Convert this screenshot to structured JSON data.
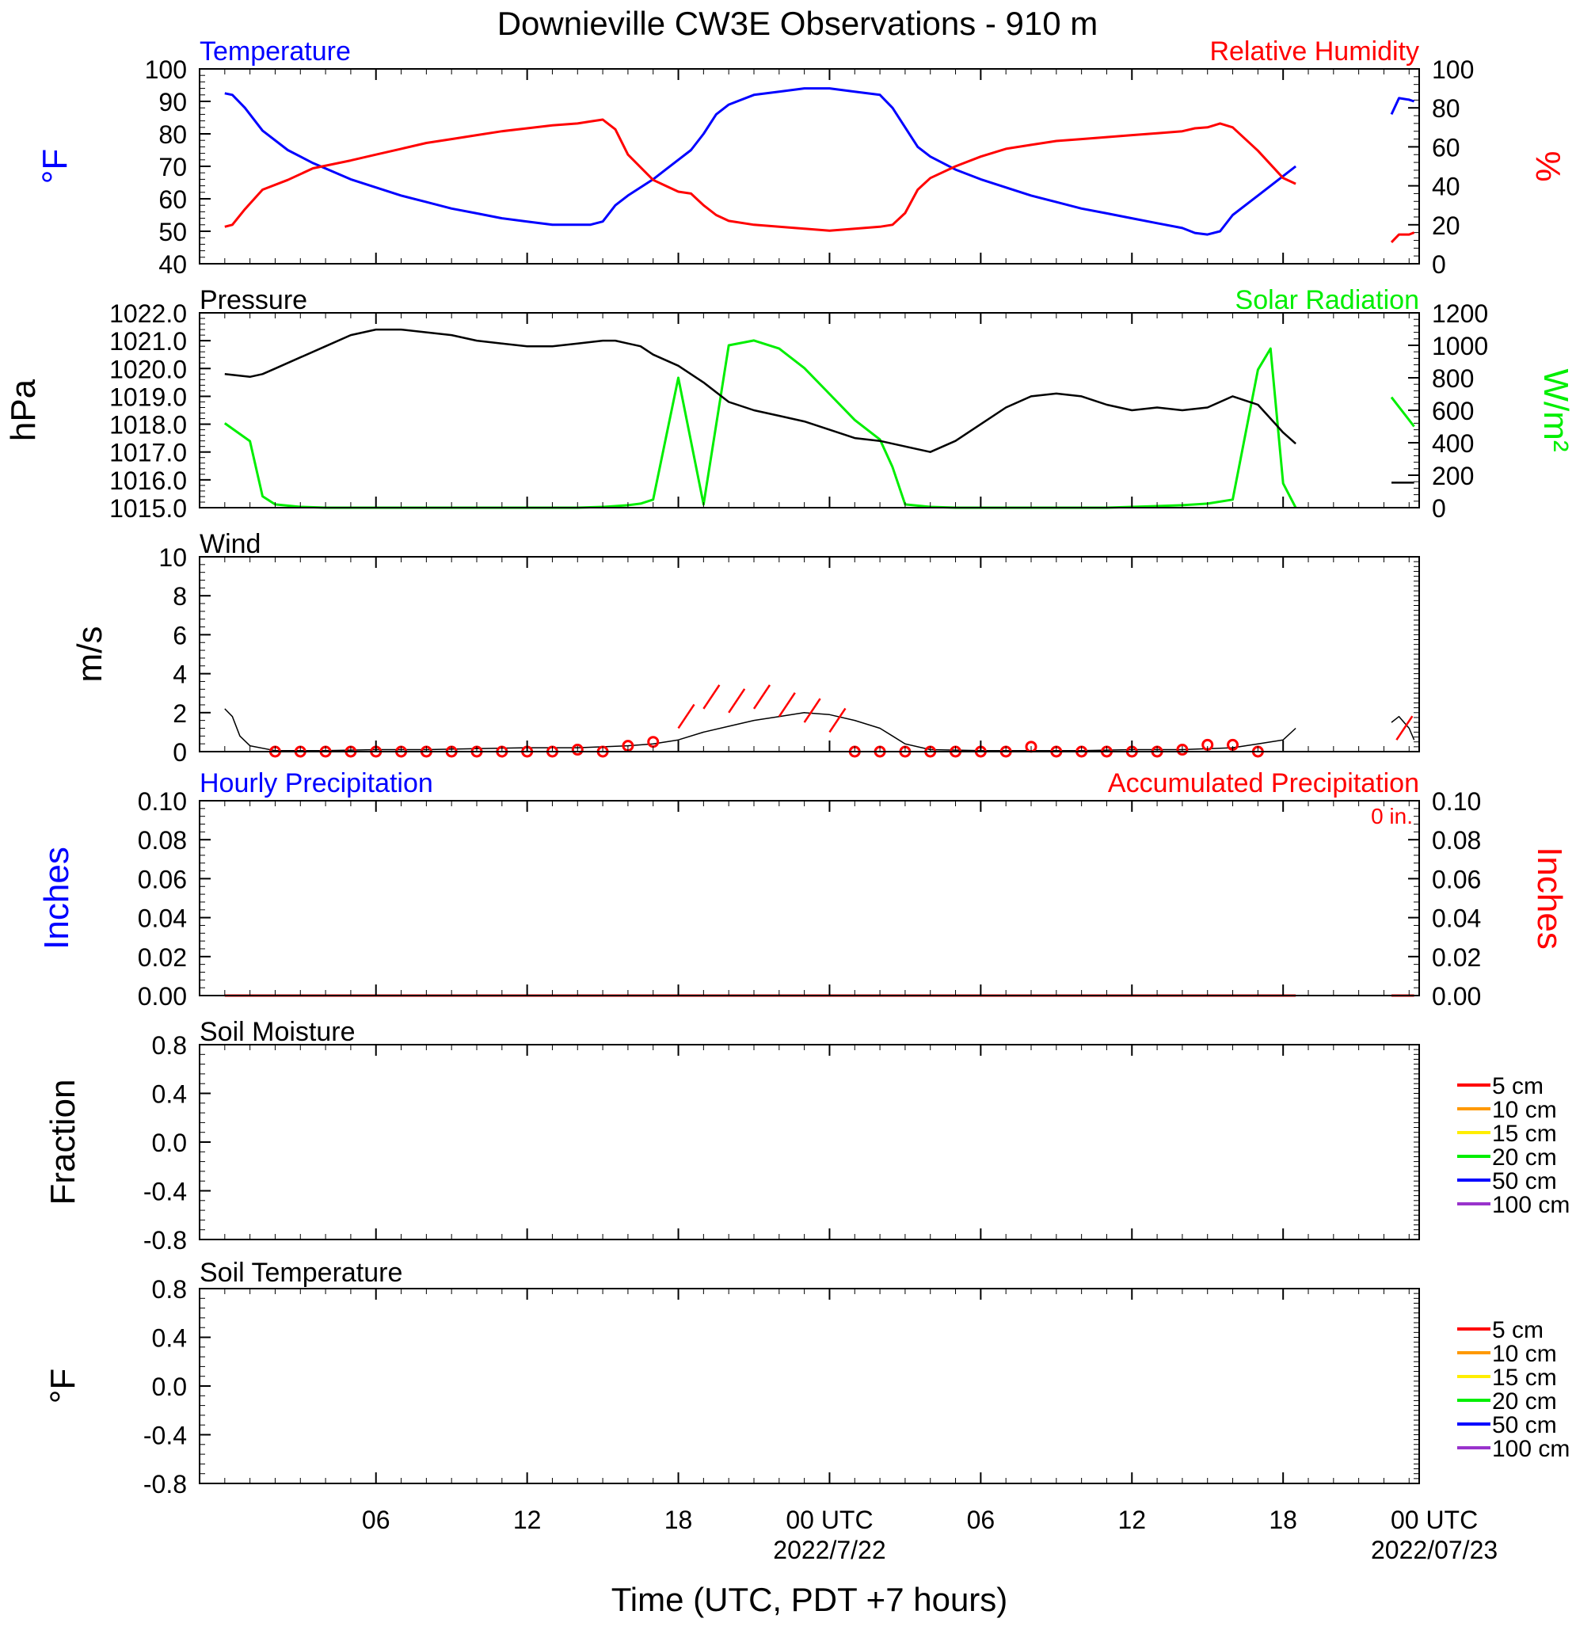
{
  "title": "Downieville CW3E Observations - 910 m",
  "x_axis": {
    "title": "Time (UTC, PDT +7 hours)",
    "ticks": [
      {
        "h": 6,
        "label": "06"
      },
      {
        "h": 12,
        "label": "12"
      },
      {
        "h": 18,
        "label": "18"
      },
      {
        "h": 24,
        "label": "00 UTC",
        "date": "2022/7/22"
      },
      {
        "h": 30,
        "label": "06"
      },
      {
        "h": 36,
        "label": "12"
      },
      {
        "h": 42,
        "label": "18"
      },
      {
        "h": 48,
        "label": "00 UTC",
        "date": "2022/07/23"
      }
    ]
  },
  "colors": {
    "temperature": "#0000ff",
    "humidity": "#ff0000",
    "pressure": "#000000",
    "solar": "#00ee00",
    "wind": "#000000",
    "barb": "#ff0000"
  },
  "panels": {
    "temperature": {
      "title": "Temperature",
      "right_title": "Relative Humidity",
      "left_unit": "°F",
      "right_unit": "%",
      "left_ticks": [
        "40",
        "50",
        "60",
        "70",
        "80",
        "90",
        "100"
      ],
      "right_ticks": [
        "0",
        "20",
        "40",
        "60",
        "80",
        "100"
      ]
    },
    "pressure": {
      "title": "Pressure",
      "right_title": "Solar Radiation",
      "left_unit": "hPa",
      "right_unit": "W/m²",
      "left_ticks": [
        "1015.0",
        "1016.0",
        "1017.0",
        "1018.0",
        "1019.0",
        "1020.0",
        "1021.0",
        "1022.0"
      ],
      "right_ticks": [
        "0",
        "200",
        "400",
        "600",
        "800",
        "1000",
        "1200"
      ]
    },
    "wind": {
      "title": "Wind",
      "left_unit": "m/s",
      "left_ticks": [
        "0",
        "2",
        "4",
        "6",
        "8",
        "10"
      ]
    },
    "precip": {
      "title": "Hourly Precipitation",
      "right_title": "Accumulated Precipitation",
      "total": "0 in.",
      "left_unit": "Inches",
      "right_unit": "Inches",
      "left_ticks": [
        "0.00",
        "0.02",
        "0.04",
        "0.06",
        "0.08",
        "0.10"
      ],
      "right_ticks": [
        "0.00",
        "0.02",
        "0.04",
        "0.06",
        "0.08",
        "0.10"
      ]
    },
    "soil_moisture": {
      "title": "Soil Moisture",
      "left_unit": "Fraction",
      "left_ticks": [
        "-0.8",
        "-0.4",
        "0.0",
        "0.4",
        "0.8"
      ]
    },
    "soil_temperature": {
      "title": "Soil Temperature",
      "left_unit": "°F",
      "left_ticks": [
        "-0.8",
        "-0.4",
        "0.0",
        "0.4",
        "0.8"
      ]
    }
  },
  "soil_legend": [
    {
      "label": "5 cm",
      "color": "#ff0000"
    },
    {
      "label": "10 cm",
      "color": "#ff9900"
    },
    {
      "label": "15 cm",
      "color": "#ffee00"
    },
    {
      "label": "20 cm",
      "color": "#00ee00"
    },
    {
      "label": "50 cm",
      "color": "#0000ff"
    },
    {
      "label": "100 cm",
      "color": "#9933cc"
    }
  ],
  "chart_data": [
    {
      "type": "line",
      "title": "Temperature",
      "x": [
        0,
        0.3,
        0.8,
        1.5,
        2.5,
        3.5,
        5,
        6,
        7,
        8,
        9,
        10,
        11,
        12,
        13,
        14,
        14.5,
        15,
        15.5,
        16,
        17,
        17.5,
        18,
        18.5,
        19,
        19.5,
        20,
        21,
        22,
        23,
        24,
        25,
        26,
        26.5,
        27,
        27.5,
        28,
        29,
        30,
        31,
        32,
        33,
        34,
        35,
        36,
        37,
        38,
        38.5,
        39,
        39.5,
        40,
        41,
        42,
        42.5,
        46.3,
        46.6,
        47,
        47.2
      ],
      "series": [
        {
          "name": "Temperature",
          "axis": "left",
          "unit": "°F",
          "ylim": [
            40,
            100
          ],
          "values": [
            92.5,
            92,
            88,
            81,
            75,
            71,
            66,
            63.5,
            61,
            59,
            57,
            55.5,
            54,
            53,
            52,
            52,
            52,
            53,
            58,
            61,
            66,
            69,
            72,
            75,
            80,
            86,
            89,
            92,
            93,
            94,
            94,
            93,
            92,
            88,
            82,
            76,
            73,
            69,
            66,
            63.5,
            61,
            59,
            57,
            55.5,
            54,
            52.5,
            51,
            49.5,
            49,
            50,
            55,
            61,
            67,
            70,
            86,
            91,
            90.5,
            90
          ]
        },
        {
          "name": "Relative Humidity",
          "axis": "right",
          "unit": "%",
          "ylim": [
            0,
            100
          ],
          "values": [
            19,
            20,
            28,
            38,
            43,
            49,
            53,
            56,
            59,
            62,
            64,
            66,
            68,
            69.5,
            71,
            72,
            73,
            74,
            69,
            56,
            43,
            40,
            37,
            36,
            30,
            25,
            22,
            20,
            19,
            18,
            17,
            18,
            19,
            20,
            26,
            38,
            44,
            50,
            55,
            59,
            61,
            63,
            64,
            65,
            66,
            67,
            68,
            69.5,
            70,
            72,
            70,
            58,
            44,
            41,
            11,
            15,
            15,
            16
          ]
        }
      ]
    },
    {
      "type": "line",
      "title": "Pressure",
      "x": [
        0,
        1,
        1.5,
        2,
        3,
        4,
        5,
        6,
        7,
        8,
        9,
        10,
        11,
        12,
        13,
        14,
        15,
        15.5,
        16,
        16.5,
        17,
        18,
        19,
        20,
        21,
        22,
        23,
        24,
        25,
        26,
        26.5,
        27,
        28,
        29,
        30,
        31,
        32,
        33,
        34,
        35,
        36,
        37,
        38,
        39,
        40,
        41,
        41.5,
        42,
        42.5,
        46.3,
        47.2
      ],
      "series": [
        {
          "name": "Pressure",
          "axis": "left",
          "unit": "hPa",
          "ylim": [
            1015,
            1022
          ],
          "values": [
            1019.8,
            1019.7,
            1019.8,
            1020.0,
            1020.4,
            1020.8,
            1021.2,
            1021.4,
            1021.4,
            1021.3,
            1021.2,
            1021.0,
            1020.9,
            1020.8,
            1020.8,
            1020.9,
            1021.0,
            1021.0,
            1020.9,
            1020.8,
            1020.5,
            1020.1,
            1019.5,
            1018.8,
            1018.5,
            1018.3,
            1018.1,
            1017.8,
            1017.5,
            1017.4,
            1017.3,
            1017.2,
            1017.0,
            1017.4,
            1018.0,
            1018.6,
            1019.0,
            1019.1,
            1019.0,
            1018.7,
            1018.5,
            1018.6,
            1018.5,
            1018.6,
            1019.0,
            1018.7,
            1018.2,
            1017.7,
            1017.3,
            1015.9,
            1015.9
          ]
        },
        {
          "name": "Solar Radiation",
          "axis": "right",
          "unit": "W/m²",
          "ylim": [
            0,
            1200
          ],
          "values": [
            520,
            410,
            70,
            20,
            5,
            0,
            0,
            0,
            0,
            0,
            0,
            0,
            0,
            0,
            0,
            0,
            5,
            10,
            15,
            25,
            50,
            800,
            20,
            1000,
            1030,
            980,
            860,
            700,
            540,
            420,
            250,
            20,
            5,
            0,
            0,
            0,
            0,
            0,
            0,
            0,
            5,
            10,
            15,
            25,
            50,
            850,
            980,
            150,
            0,
            680,
            500
          ]
        }
      ]
    },
    {
      "type": "line",
      "title": "Wind",
      "unit": "m/s",
      "ylim": [
        0,
        10
      ],
      "x": [
        0,
        0.3,
        0.6,
        1,
        2,
        4,
        6,
        8,
        10,
        12,
        14,
        15,
        16,
        17,
        18,
        19,
        20,
        21,
        22,
        23,
        24,
        25,
        26,
        26.5,
        27,
        28,
        30,
        32,
        34,
        36,
        38,
        40,
        41,
        42,
        42.5,
        46.3,
        46.6,
        47,
        47.2
      ],
      "values": [
        2.2,
        1.8,
        0.8,
        0.3,
        0.05,
        0.05,
        0.1,
        0.1,
        0.15,
        0.2,
        0.2,
        0.25,
        0.3,
        0.4,
        0.6,
        1.0,
        1.3,
        1.6,
        1.8,
        2.0,
        1.9,
        1.6,
        1.2,
        0.8,
        0.4,
        0.1,
        0.05,
        0.05,
        0.05,
        0.1,
        0.1,
        0.2,
        0.4,
        0.6,
        1.2,
        1.5,
        1.8,
        1.2,
        0.6
      ],
      "hourly_speed": [
        0,
        0,
        0,
        0,
        0,
        0,
        0,
        0,
        0,
        0,
        0,
        0,
        0.1,
        0,
        0.3,
        0.5,
        1.2,
        2.2,
        2.0,
        2.2,
        1.8,
        1.5,
        1.0,
        0,
        0,
        0,
        0,
        0,
        0,
        0,
        0.25,
        0,
        0,
        0,
        0,
        0,
        0.1,
        0.35,
        0.35,
        0,
        0.6
      ],
      "hourly_hours": [
        2,
        3,
        4,
        5,
        6,
        7,
        8,
        9,
        10,
        11,
        12,
        13,
        14,
        15,
        16,
        17,
        18,
        19,
        20,
        21,
        22,
        23,
        24,
        25,
        26,
        27,
        28,
        29,
        30,
        31,
        32,
        33,
        34,
        35,
        36,
        37,
        38,
        39,
        40,
        41,
        46.5
      ]
    },
    {
      "type": "line",
      "title": "Hourly Precipitation",
      "unit": "Inches",
      "ylim": [
        0,
        0.1
      ],
      "series": [
        {
          "name": "Hourly Precipitation",
          "x": [
            0,
            42.5
          ],
          "values": [
            0,
            0
          ]
        },
        {
          "name": "Accumulated Precipitation",
          "x": [
            0,
            42.5,
            46.3,
            47.2
          ],
          "values": [
            0,
            0,
            0,
            0
          ]
        }
      ]
    },
    {
      "type": "line",
      "title": "Soil Moisture",
      "unit": "Fraction",
      "ylim": [
        -1,
        1
      ],
      "series": []
    },
    {
      "type": "line",
      "title": "Soil Temperature",
      "unit": "°F",
      "ylim": [
        -1,
        1
      ],
      "series": []
    }
  ]
}
